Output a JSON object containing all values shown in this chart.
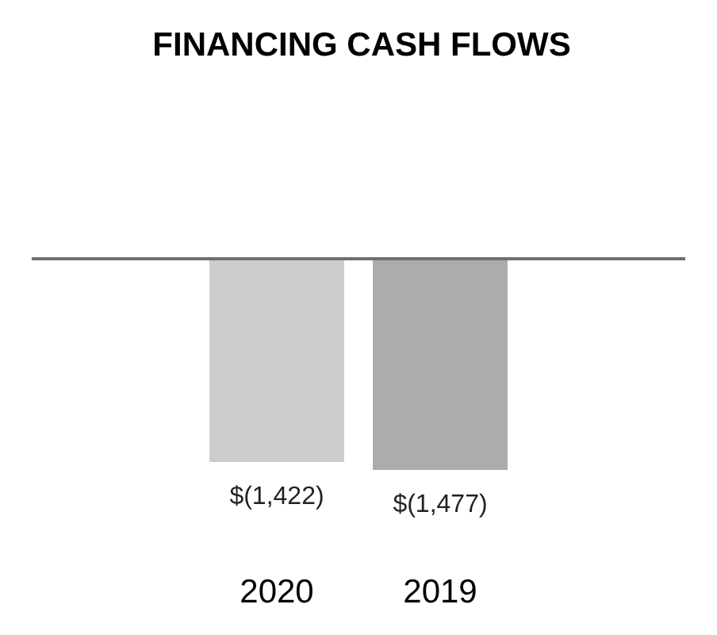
{
  "chart_data": {
    "type": "bar",
    "title": "FINANCING CASH FLOWS",
    "categories": [
      "2020",
      "2019"
    ],
    "values": [
      -1422,
      -1477
    ],
    "colors": [
      "#cccccc",
      "#acacac"
    ],
    "value_labels": [
      "$(1,422)",
      "$(1,477)"
    ],
    "tick_labels": "x"
  }
}
